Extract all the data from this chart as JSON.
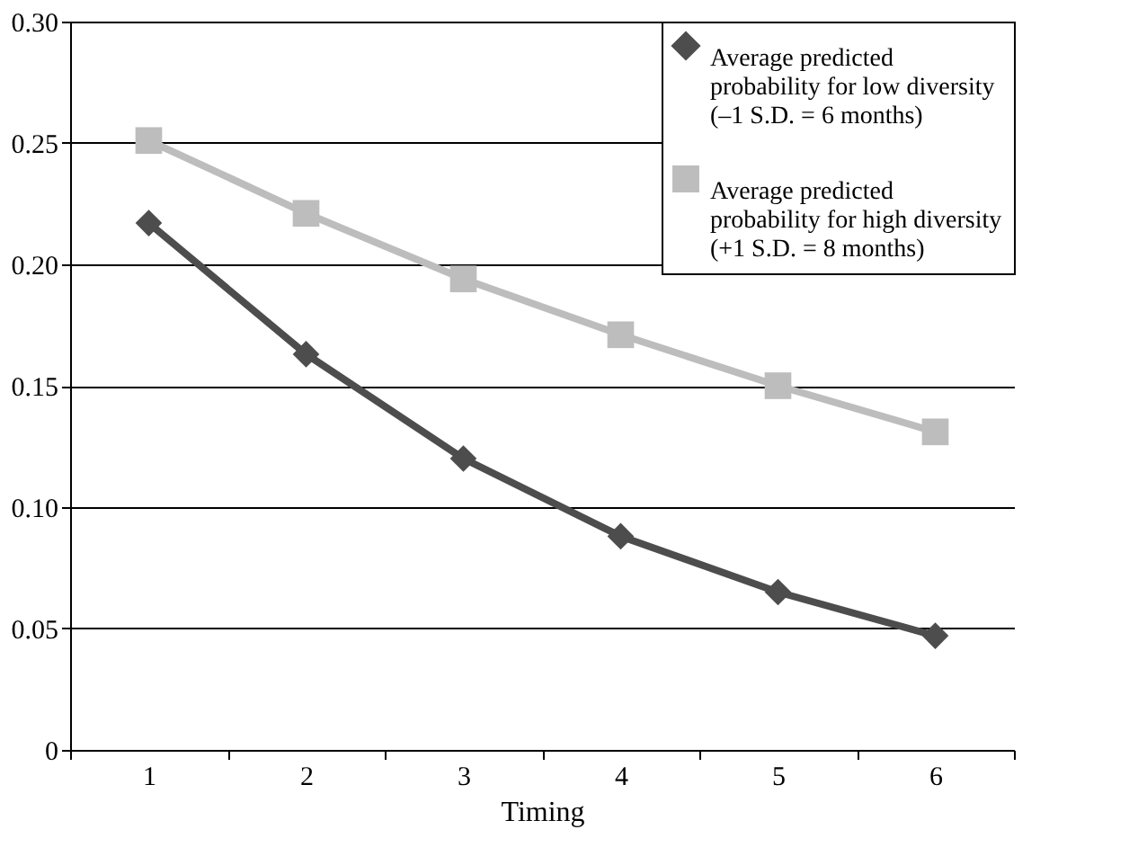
{
  "chart_data": {
    "type": "line",
    "xlabel": "Timing",
    "categories": [
      "1",
      "2",
      "3",
      "4",
      "5",
      "6"
    ],
    "series": [
      {
        "name": "Average predicted\nprobability for low diversity\n(–1 S.D. = 6 months)",
        "color": "#4d4d4d",
        "marker": "diamond",
        "values": [
          0.217,
          0.163,
          0.12,
          0.088,
          0.065,
          0.047
        ]
      },
      {
        "name": "Average predicted\nprobability for high diversity\n(+1 S.D. = 8 months)",
        "color": "#bdbdbd",
        "marker": "square",
        "values": [
          0.251,
          0.221,
          0.194,
          0.171,
          0.15,
          0.131
        ]
      }
    ],
    "ylim": [
      0,
      0.3
    ],
    "yticks": [
      0,
      0.05,
      {
        "value": 0.1,
        "label": "0.10"
      },
      0.15,
      {
        "value": 0.2,
        "label": "0.20"
      },
      0.25,
      {
        "value": 0.3,
        "label": "0.30"
      }
    ],
    "grid": "y",
    "legend": "top right",
    "line_style": "solid"
  }
}
